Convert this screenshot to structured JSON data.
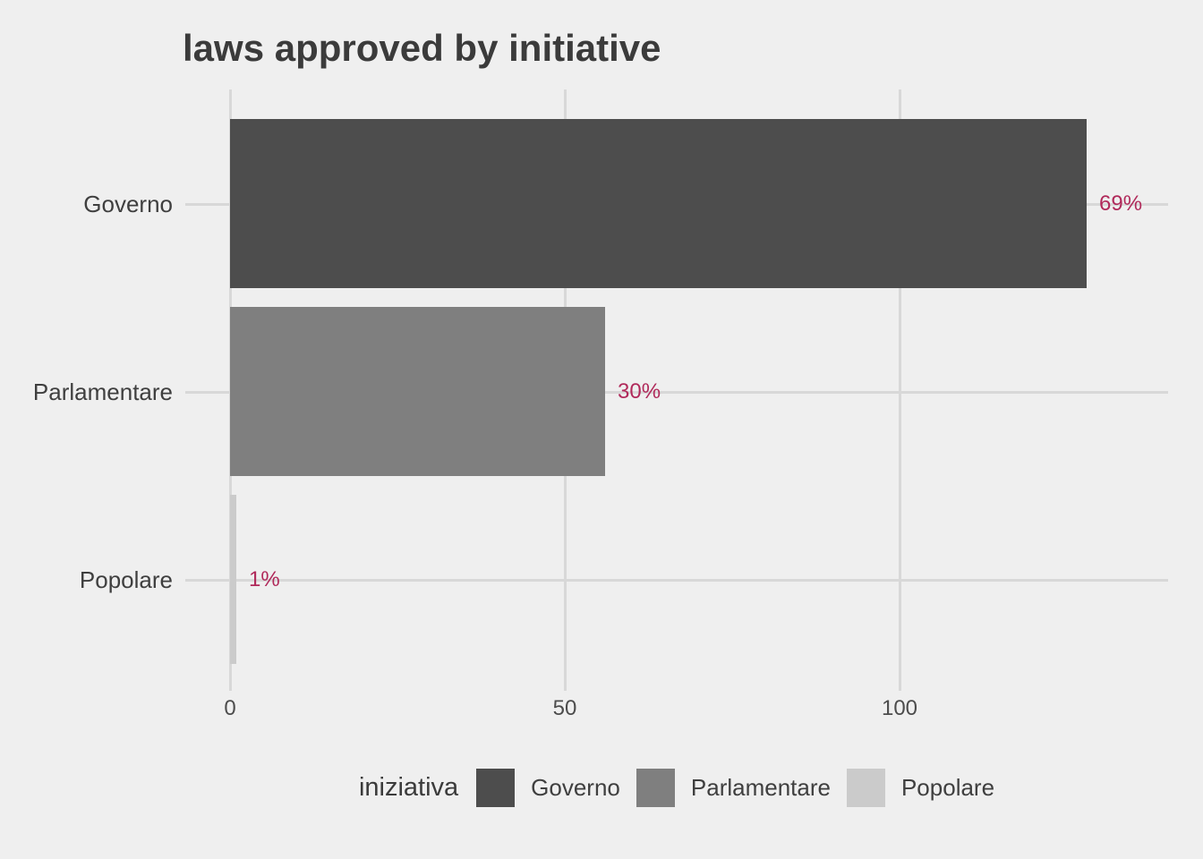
{
  "chart_data": {
    "type": "bar",
    "orientation": "horizontal",
    "title": "laws approved by initiative",
    "categories": [
      "Governo",
      "Parlamentare",
      "Popolare"
    ],
    "values": [
      128,
      56,
      1
    ],
    "value_labels": [
      "69%",
      "30%",
      "1%"
    ],
    "xlabel": "",
    "ylabel": "",
    "xlim": [
      -7,
      140
    ],
    "xticks": [
      0,
      50,
      100
    ],
    "grid": true,
    "bar_colors": [
      "#4d4d4d",
      "#7f7f7f",
      "#cbcbcb"
    ],
    "value_label_color": "#b0295a",
    "gridline_color": "#d8d8d8",
    "background": "#efefef",
    "legend": {
      "title": "iniziativa",
      "position": "bottom",
      "entries": [
        {
          "label": "Governo",
          "color": "#4d4d4d"
        },
        {
          "label": "Parlamentare",
          "color": "#7f7f7f"
        },
        {
          "label": "Popolare",
          "color": "#cbcbcb"
        }
      ]
    }
  }
}
